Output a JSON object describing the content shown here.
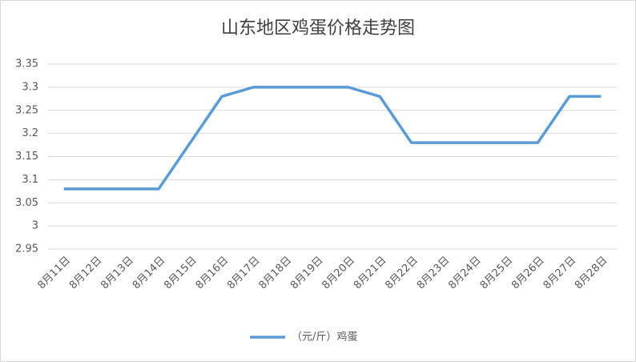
{
  "chart_data": {
    "type": "line",
    "title": "山东地区鸡蛋价格走势图",
    "categories": [
      "8月11日",
      "8月12日",
      "8月13日",
      "8月14日",
      "8月15日",
      "8月16日",
      "8月17日",
      "8月18日",
      "8月19日",
      "8月20日",
      "8月21日",
      "8月22日",
      "8月23日",
      "8月24日",
      "8月25日",
      "8月26日",
      "8月27日",
      "8月28日"
    ],
    "series": [
      {
        "name": "（元/斤）鸡蛋",
        "color": "#5b9bd5",
        "values": [
          3.08,
          3.08,
          3.08,
          3.08,
          3.18,
          3.28,
          3.3,
          3.3,
          3.3,
          3.3,
          3.28,
          3.18,
          3.18,
          3.18,
          3.18,
          3.18,
          3.28,
          3.28
        ]
      }
    ],
    "ylim": [
      2.95,
      3.35
    ],
    "yticks": [
      2.95,
      3,
      3.05,
      3.1,
      3.15,
      3.2,
      3.25,
      3.3,
      3.35
    ],
    "grid": true,
    "legend": "bottom"
  }
}
